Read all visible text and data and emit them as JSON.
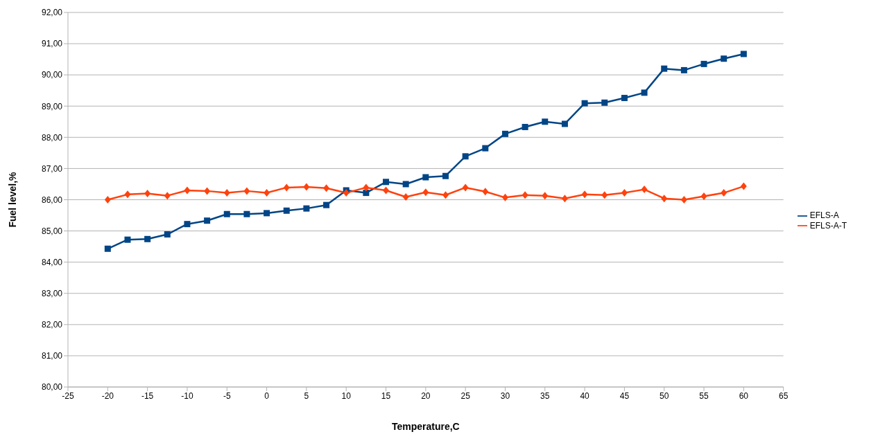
{
  "chart_data": {
    "type": "line",
    "xlabel": "Temperature,C",
    "ylabel": "Fuel level,%",
    "x": [
      -20,
      -17.5,
      -15,
      -12.5,
      -10,
      -7.5,
      -5,
      -2.5,
      0,
      2.5,
      5,
      7.5,
      10,
      12.5,
      15,
      17.5,
      20,
      22.5,
      25,
      27.5,
      30,
      32.5,
      35,
      37.5,
      40,
      42.5,
      45,
      47.5,
      50,
      52.5,
      55,
      57.5,
      60
    ],
    "series": [
      {
        "name": "EFLS-A",
        "color": "#004586",
        "marker": "square",
        "values": [
          84.43,
          84.72,
          84.74,
          84.89,
          85.22,
          85.33,
          85.54,
          85.54,
          85.57,
          85.65,
          85.72,
          85.83,
          86.3,
          86.22,
          86.57,
          86.5,
          86.72,
          86.76,
          87.39,
          87.65,
          88.11,
          88.33,
          88.5,
          88.43,
          89.09,
          89.11,
          89.26,
          89.43,
          90.2,
          90.15,
          90.35,
          90.52,
          90.67
        ]
      },
      {
        "name": "EFLS-A-T",
        "color": "#ff420e",
        "marker": "diamond",
        "values": [
          86.0,
          86.17,
          86.2,
          86.13,
          86.3,
          86.28,
          86.22,
          86.28,
          86.22,
          86.39,
          86.41,
          86.37,
          86.22,
          86.39,
          86.3,
          86.09,
          86.24,
          86.15,
          86.39,
          86.26,
          86.07,
          86.15,
          86.13,
          86.04,
          86.17,
          86.15,
          86.22,
          86.33,
          86.04,
          86.0,
          86.11,
          86.22,
          86.43
        ]
      }
    ],
    "xlim": [
      -25,
      65
    ],
    "xticks": [
      -25,
      -20,
      -15,
      -10,
      -5,
      0,
      5,
      10,
      15,
      20,
      25,
      30,
      35,
      40,
      45,
      50,
      55,
      60,
      65
    ],
    "ylim": [
      80,
      92
    ],
    "yticks": [
      {
        "value": 80,
        "label": "80,00"
      },
      {
        "value": 81,
        "label": "81,00"
      },
      {
        "value": 82,
        "label": "82,00"
      },
      {
        "value": 83,
        "label": "83,00"
      },
      {
        "value": 84,
        "label": "84,00"
      },
      {
        "value": 85,
        "label": "85,00"
      },
      {
        "value": 86,
        "label": "86,00"
      },
      {
        "value": 87,
        "label": "87,00"
      },
      {
        "value": 88,
        "label": "88,00"
      },
      {
        "value": 89,
        "label": "89,00"
      },
      {
        "value": 90,
        "label": "90,00"
      },
      {
        "value": 91,
        "label": "91,00"
      },
      {
        "value": 92,
        "label": "92,00"
      }
    ],
    "grid": "y",
    "legend": "right",
    "line_style": "solid"
  }
}
